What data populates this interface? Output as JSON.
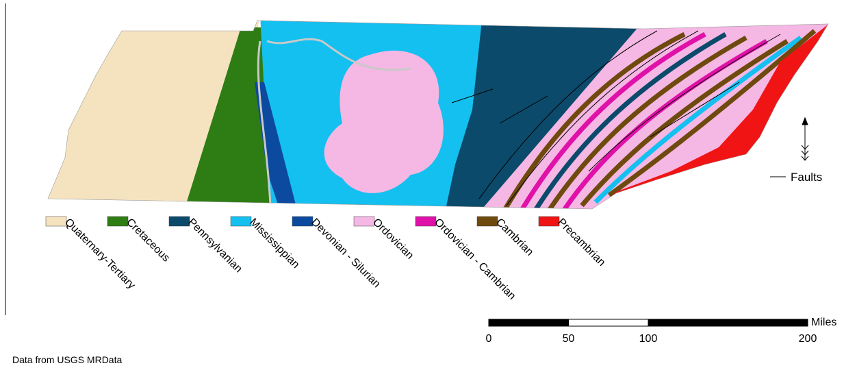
{
  "legend": {
    "items": [
      {
        "label": "Quaternary-Tertiary",
        "color": "#f5e3c0"
      },
      {
        "label": "Cretaceous",
        "color": "#2e7d14"
      },
      {
        "label": "Pennsylvanian",
        "color": "#0b4a6b"
      },
      {
        "label": "Mississippian",
        "color": "#14c0f0"
      },
      {
        "label": "Devonian - Silurian",
        "color": "#0c4aa0"
      },
      {
        "label": "Ordovician",
        "color": "#f5b7e3"
      },
      {
        "label": "Ordovician - Cambrian",
        "color": "#e011a8"
      },
      {
        "label": "Cambrian",
        "color": "#6e4a0e"
      },
      {
        "label": "Precambrian",
        "color": "#f01414"
      }
    ]
  },
  "faults_label": "Faults",
  "scale": {
    "unit": "Miles",
    "ticks": [
      0,
      50,
      100,
      200
    ]
  },
  "credit": "Data from USGS MRData"
}
